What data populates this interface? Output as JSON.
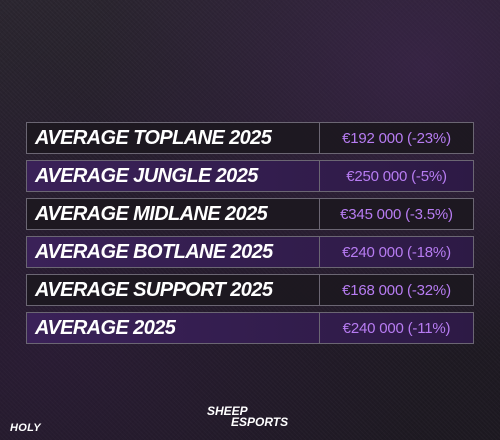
{
  "colors": {
    "label_text": "#ffffff",
    "value_text": "#b77cf2",
    "row_dark": "#1c1820",
    "row_purple": "#34204f",
    "border": "#6b6673"
  },
  "rows": [
    {
      "label": "AVERAGE TOPLANE 2025",
      "value": "€192 000 (-23%)",
      "style": "dark"
    },
    {
      "label": "AVERAGE JUNGLE 2025",
      "value": "€250 000 (-5%)",
      "style": "purple"
    },
    {
      "label": "AVERAGE MIDLANE 2025",
      "value": "€345 000 (-3.5%)",
      "style": "dark"
    },
    {
      "label": "AVERAGE BOTLANE 2025",
      "value": "€240 000 (-18%)",
      "style": "purple"
    },
    {
      "label": "AVERAGE SUPPORT 2025",
      "value": "€168 000 (-32%)",
      "style": "dark"
    },
    {
      "label": "AVERAGE 2025",
      "value": "€240 000 (-11%)",
      "style": "purple"
    }
  ],
  "footer": {
    "left_logo": "HOLY",
    "center_logo_line1": "SHEEP",
    "center_logo_line2": "ESPORTS"
  }
}
